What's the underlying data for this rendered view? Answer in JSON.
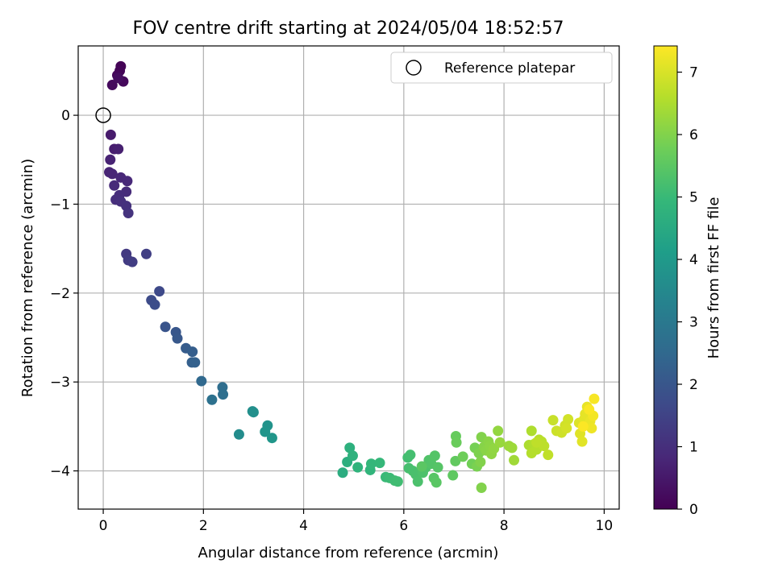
{
  "chart_data": {
    "type": "scatter",
    "title": "FOV centre drift starting at 2024/05/04 18:52:57",
    "xlabel": "Angular distance from reference (arcmin)",
    "ylabel": "Rotation from reference (arcmin)",
    "xlim": [
      -0.5,
      10.3
    ],
    "ylim": [
      -4.43,
      0.78
    ],
    "x_ticks": [
      0,
      2,
      4,
      6,
      8,
      10
    ],
    "y_ticks": [
      0,
      -1,
      -2,
      -3,
      -4
    ],
    "x_tick_labels": [
      "0",
      "2",
      "4",
      "6",
      "8",
      "10"
    ],
    "y_tick_labels": [
      "0",
      "−1",
      "−2",
      "−3",
      "−4"
    ],
    "grid": true,
    "legend": {
      "position": "top-right",
      "entries": [
        "Reference platepar"
      ]
    },
    "reference_point": {
      "x": 0,
      "y": 0
    },
    "colorbar": {
      "label": "Hours from first FF file",
      "range": [
        0,
        7.42
      ],
      "ticks": [
        0,
        1,
        2,
        3,
        4,
        5,
        6,
        7
      ],
      "tick_labels": [
        "0",
        "1",
        "2",
        "3",
        "4",
        "5",
        "6",
        "7"
      ],
      "colormap_stops": [
        "#440154",
        "#482878",
        "#3e4989",
        "#31688e",
        "#26828e",
        "#1f9e89",
        "#35b779",
        "#6ece58",
        "#b5de2b",
        "#fde725"
      ]
    },
    "points": [
      {
        "x": 0.35,
        "y": 0.55,
        "h": 0.05
      },
      {
        "x": 0.33,
        "y": 0.5,
        "h": 0.08
      },
      {
        "x": 0.28,
        "y": 0.45,
        "h": 0.12
      },
      {
        "x": 0.4,
        "y": 0.38,
        "h": 0.15
      },
      {
        "x": 0.18,
        "y": 0.34,
        "h": 0.2
      },
      {
        "x": 0.3,
        "y": 0.42,
        "h": 0.25
      },
      {
        "x": 0.15,
        "y": -0.22,
        "h": 0.55
      },
      {
        "x": 0.22,
        "y": -0.38,
        "h": 0.6
      },
      {
        "x": 0.3,
        "y": -0.38,
        "h": 0.65
      },
      {
        "x": 0.14,
        "y": -0.5,
        "h": 0.7
      },
      {
        "x": 0.12,
        "y": -0.64,
        "h": 0.75
      },
      {
        "x": 0.18,
        "y": -0.66,
        "h": 0.78
      },
      {
        "x": 0.35,
        "y": -0.7,
        "h": 0.82
      },
      {
        "x": 0.48,
        "y": -0.74,
        "h": 0.85
      },
      {
        "x": 0.22,
        "y": -0.79,
        "h": 0.88
      },
      {
        "x": 0.46,
        "y": -0.86,
        "h": 0.92
      },
      {
        "x": 0.32,
        "y": -0.9,
        "h": 0.95
      },
      {
        "x": 0.25,
        "y": -0.95,
        "h": 0.98
      },
      {
        "x": 0.35,
        "y": -0.97,
        "h": 1.02
      },
      {
        "x": 0.46,
        "y": -1.02,
        "h": 1.05
      },
      {
        "x": 0.5,
        "y": -1.1,
        "h": 1.1
      },
      {
        "x": 0.46,
        "y": -1.56,
        "h": 1.25
      },
      {
        "x": 0.5,
        "y": -1.63,
        "h": 1.3
      },
      {
        "x": 0.58,
        "y": -1.65,
        "h": 1.35
      },
      {
        "x": 0.86,
        "y": -1.56,
        "h": 1.4
      },
      {
        "x": 1.12,
        "y": -1.98,
        "h": 1.65
      },
      {
        "x": 0.96,
        "y": -2.08,
        "h": 1.7
      },
      {
        "x": 1.03,
        "y": -2.13,
        "h": 1.75
      },
      {
        "x": 1.24,
        "y": -2.38,
        "h": 1.95
      },
      {
        "x": 1.45,
        "y": -2.44,
        "h": 2.0
      },
      {
        "x": 1.48,
        "y": -2.51,
        "h": 2.05
      },
      {
        "x": 1.65,
        "y": -2.62,
        "h": 2.15
      },
      {
        "x": 1.78,
        "y": -2.66,
        "h": 2.2
      },
      {
        "x": 1.77,
        "y": -2.78,
        "h": 2.25
      },
      {
        "x": 1.83,
        "y": -2.78,
        "h": 2.3
      },
      {
        "x": 1.96,
        "y": -2.99,
        "h": 2.5
      },
      {
        "x": 2.38,
        "y": -3.06,
        "h": 2.65
      },
      {
        "x": 2.39,
        "y": -3.14,
        "h": 2.7
      },
      {
        "x": 2.17,
        "y": -3.2,
        "h": 2.75
      },
      {
        "x": 2.71,
        "y": -3.59,
        "h": 3.6
      },
      {
        "x": 2.98,
        "y": -3.33,
        "h": 3.65
      },
      {
        "x": 3.0,
        "y": -3.34,
        "h": 3.7
      },
      {
        "x": 3.28,
        "y": -3.49,
        "h": 3.8
      },
      {
        "x": 3.23,
        "y": -3.56,
        "h": 3.85
      },
      {
        "x": 3.37,
        "y": -3.63,
        "h": 3.9
      },
      {
        "x": 4.78,
        "y": -4.02,
        "h": 4.6
      },
      {
        "x": 4.87,
        "y": -3.9,
        "h": 4.65
      },
      {
        "x": 4.92,
        "y": -3.74,
        "h": 4.7
      },
      {
        "x": 4.98,
        "y": -3.83,
        "h": 4.75
      },
      {
        "x": 5.08,
        "y": -3.96,
        "h": 4.8
      },
      {
        "x": 5.33,
        "y": -3.99,
        "h": 4.85
      },
      {
        "x": 5.35,
        "y": -3.92,
        "h": 4.9
      },
      {
        "x": 5.52,
        "y": -3.91,
        "h": 4.95
      },
      {
        "x": 5.64,
        "y": -4.07,
        "h": 5.0
      },
      {
        "x": 5.72,
        "y": -4.08,
        "h": 5.05
      },
      {
        "x": 5.82,
        "y": -4.11,
        "h": 5.1
      },
      {
        "x": 5.88,
        "y": -4.12,
        "h": 5.12
      },
      {
        "x": 6.08,
        "y": -3.85,
        "h": 5.15
      },
      {
        "x": 6.13,
        "y": -3.82,
        "h": 5.18
      },
      {
        "x": 6.1,
        "y": -3.97,
        "h": 5.2
      },
      {
        "x": 6.18,
        "y": -4.0,
        "h": 5.22
      },
      {
        "x": 6.24,
        "y": -4.04,
        "h": 5.25
      },
      {
        "x": 6.28,
        "y": -4.12,
        "h": 5.28
      },
      {
        "x": 6.38,
        "y": -4.02,
        "h": 5.3
      },
      {
        "x": 6.44,
        "y": -3.96,
        "h": 5.32
      },
      {
        "x": 6.5,
        "y": -3.88,
        "h": 5.35
      },
      {
        "x": 6.55,
        "y": -3.92,
        "h": 5.38
      },
      {
        "x": 6.62,
        "y": -3.83,
        "h": 5.4
      },
      {
        "x": 6.68,
        "y": -3.96,
        "h": 5.42
      },
      {
        "x": 6.6,
        "y": -4.08,
        "h": 5.45
      },
      {
        "x": 6.65,
        "y": -4.13,
        "h": 5.48
      },
      {
        "x": 6.36,
        "y": -3.95,
        "h": 5.5
      },
      {
        "x": 6.98,
        "y": -4.05,
        "h": 5.55
      },
      {
        "x": 7.03,
        "y": -3.89,
        "h": 5.6
      },
      {
        "x": 7.04,
        "y": -3.61,
        "h": 5.65
      },
      {
        "x": 7.05,
        "y": -3.68,
        "h": 5.7
      },
      {
        "x": 7.18,
        "y": -3.84,
        "h": 5.75
      },
      {
        "x": 7.36,
        "y": -3.92,
        "h": 5.8
      },
      {
        "x": 7.42,
        "y": -3.74,
        "h": 5.85
      },
      {
        "x": 7.46,
        "y": -3.95,
        "h": 5.9
      },
      {
        "x": 7.5,
        "y": -3.8,
        "h": 5.95
      },
      {
        "x": 7.55,
        "y": -3.62,
        "h": 6.0
      },
      {
        "x": 7.53,
        "y": -3.9,
        "h": 6.0
      },
      {
        "x": 7.6,
        "y": -3.73,
        "h": 6.05
      },
      {
        "x": 7.64,
        "y": -3.77,
        "h": 6.08
      },
      {
        "x": 7.69,
        "y": -3.67,
        "h": 6.1
      },
      {
        "x": 7.72,
        "y": -3.72,
        "h": 6.12
      },
      {
        "x": 7.75,
        "y": -3.81,
        "h": 6.15
      },
      {
        "x": 7.8,
        "y": -3.75,
        "h": 6.18
      },
      {
        "x": 7.55,
        "y": -4.19,
        "h": 6.0
      },
      {
        "x": 7.88,
        "y": -3.55,
        "h": 6.2
      },
      {
        "x": 7.92,
        "y": -3.68,
        "h": 6.25
      },
      {
        "x": 8.1,
        "y": -3.72,
        "h": 6.3
      },
      {
        "x": 8.16,
        "y": -3.74,
        "h": 6.32
      },
      {
        "x": 8.2,
        "y": -3.88,
        "h": 6.35
      },
      {
        "x": 8.5,
        "y": -3.71,
        "h": 6.5
      },
      {
        "x": 8.55,
        "y": -3.55,
        "h": 6.52
      },
      {
        "x": 8.6,
        "y": -3.7,
        "h": 6.55
      },
      {
        "x": 8.55,
        "y": -3.8,
        "h": 6.58
      },
      {
        "x": 8.65,
        "y": -3.76,
        "h": 6.6
      },
      {
        "x": 8.7,
        "y": -3.65,
        "h": 6.62
      },
      {
        "x": 8.75,
        "y": -3.67,
        "h": 6.65
      },
      {
        "x": 8.8,
        "y": -3.72,
        "h": 6.68
      },
      {
        "x": 8.65,
        "y": -3.68,
        "h": 6.7
      },
      {
        "x": 8.88,
        "y": -3.82,
        "h": 6.72
      },
      {
        "x": 8.98,
        "y": -3.43,
        "h": 6.8
      },
      {
        "x": 9.05,
        "y": -3.55,
        "h": 6.85
      },
      {
        "x": 9.15,
        "y": -3.57,
        "h": 6.88
      },
      {
        "x": 9.22,
        "y": -3.49,
        "h": 6.9
      },
      {
        "x": 9.28,
        "y": -3.42,
        "h": 6.92
      },
      {
        "x": 9.25,
        "y": -3.52,
        "h": 6.95
      },
      {
        "x": 9.5,
        "y": -3.46,
        "h": 7.05
      },
      {
        "x": 9.52,
        "y": -3.58,
        "h": 7.08
      },
      {
        "x": 9.56,
        "y": -3.67,
        "h": 7.1
      },
      {
        "x": 9.6,
        "y": -3.42,
        "h": 7.12
      },
      {
        "x": 9.62,
        "y": -3.36,
        "h": 7.15
      },
      {
        "x": 9.66,
        "y": -3.28,
        "h": 7.18
      },
      {
        "x": 9.72,
        "y": -3.44,
        "h": 7.2
      },
      {
        "x": 9.75,
        "y": -3.52,
        "h": 7.25
      },
      {
        "x": 9.78,
        "y": -3.38,
        "h": 7.3
      },
      {
        "x": 9.8,
        "y": -3.19,
        "h": 7.35
      },
      {
        "x": 9.7,
        "y": -3.31,
        "h": 7.38
      },
      {
        "x": 9.58,
        "y": -3.5,
        "h": 7.4
      }
    ]
  }
}
